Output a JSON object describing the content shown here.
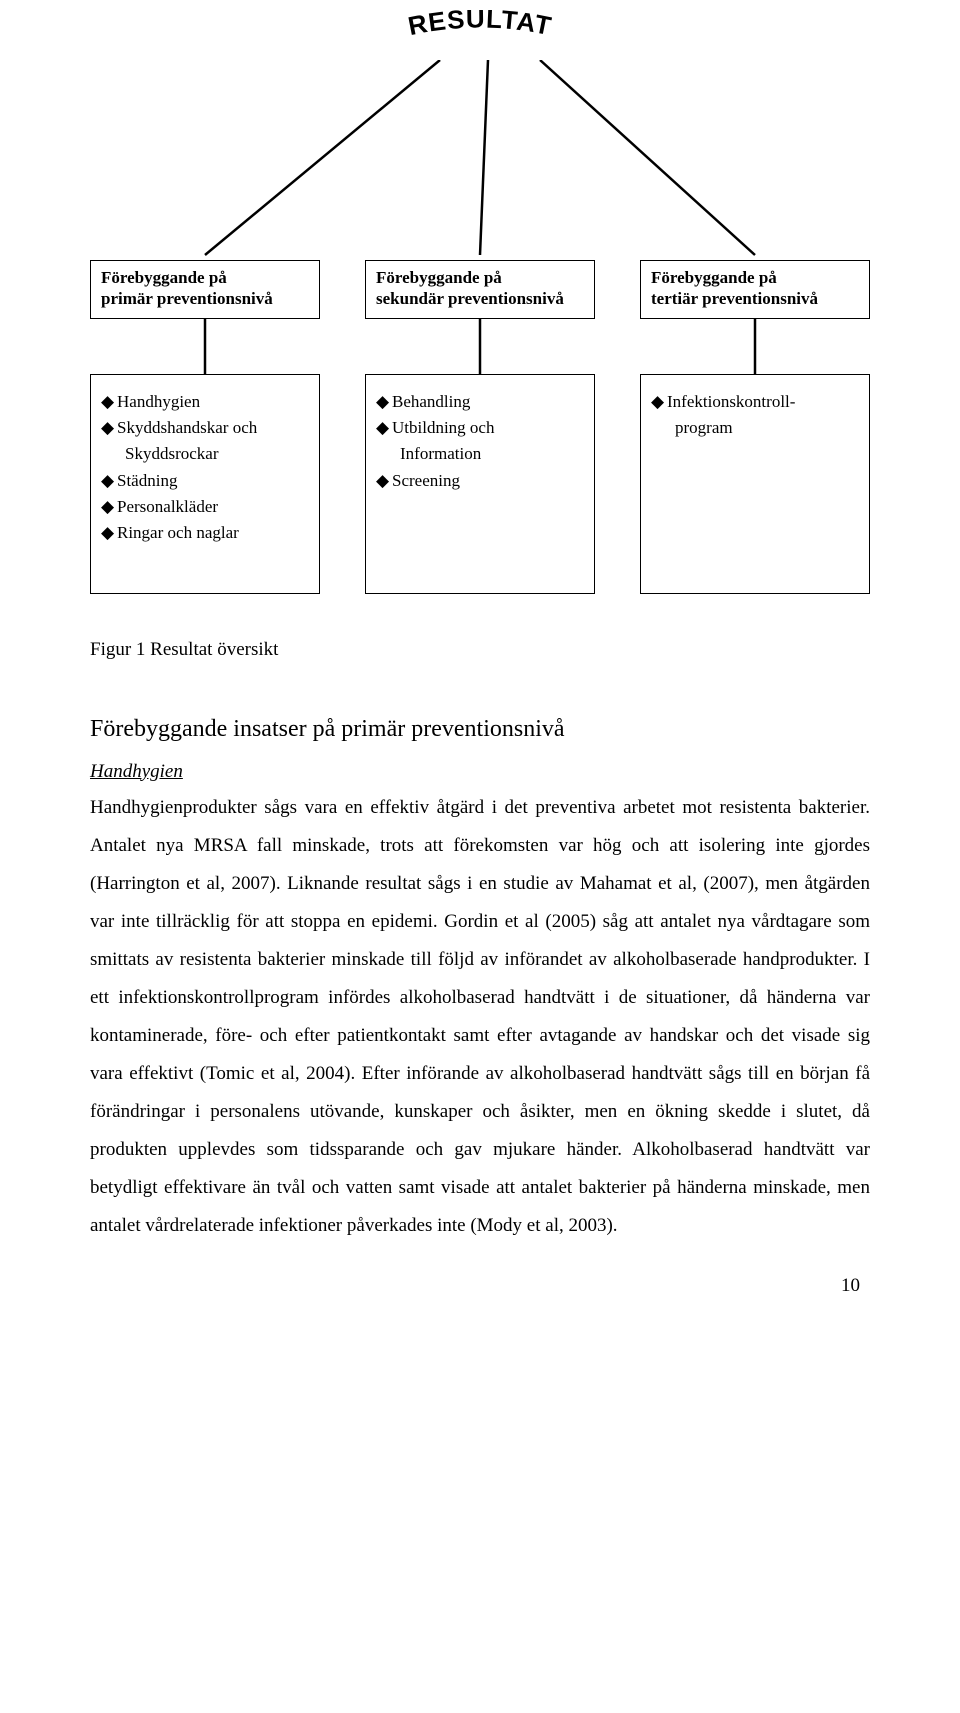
{
  "diagram": {
    "title": "RESULTAT",
    "title_font_family": "Arial Black, Arial, sans-serif",
    "title_font_weight": "900",
    "title_font_size": 26,
    "line_color": "#000000",
    "line_width": 2.5,
    "box_border_color": "#000000",
    "headers": [
      {
        "line1": "Förebyggande på",
        "line2": "primär preventionsnivå"
      },
      {
        "line1": "Förebyggande på",
        "line2": "sekundär preventionsnivå"
      },
      {
        "line1": "Förebyggande på",
        "line2": "tertiär preventionsnivå"
      }
    ],
    "details": [
      {
        "items": [
          "Handhygien",
          "Skyddshandskar och Skyddsrockar",
          "Städning",
          "Personalkläder",
          "Ringar och naglar"
        ]
      },
      {
        "items": [
          "Behandling",
          "Utbildning och Information",
          "Screening"
        ]
      },
      {
        "items": [
          "Infektionskontroll-program"
        ]
      }
    ]
  },
  "caption": "Figur 1 Resultat översikt",
  "section_heading": "Förebyggande insatser på primär preventionsnivå",
  "sub_heading": "Handhygien",
  "body_text": "Handhygienprodukter sågs vara en effektiv åtgärd i det preventiva arbetet mot resistenta bakterier. Antalet nya MRSA fall minskade, trots att förekomsten var hög och att isolering inte gjordes (Harrington et al, 2007). Liknande resultat sågs i en studie av Mahamat et al, (2007), men åtgärden var inte tillräcklig för att stoppa en epidemi. Gordin et al (2005) såg att antalet nya vårdtagare som smittats av resistenta bakterier minskade till följd av införandet av alkoholbaserade handprodukter. I ett infektionskontrollprogram infördes alkoholbaserad handtvätt i de situationer, då händerna var kontaminerade, före- och efter patientkontakt samt efter avtagande av handskar och det visade sig vara effektivt (Tomic et al, 2004). Efter införande av alkoholbaserad handtvätt sågs till en början få förändringar i personalens utövande, kunskaper och åsikter, men en ökning skedde i slutet, då produkten upplevdes som tidssparande och gav mjukare händer. Alkoholbaserad handtvätt var betydligt effektivare än tvål och vatten samt visade att antalet bakterier på händerna minskade, men antalet vårdrelaterade infektioner påverkades inte (Mody et al, 2003).",
  "page_number": "10"
}
